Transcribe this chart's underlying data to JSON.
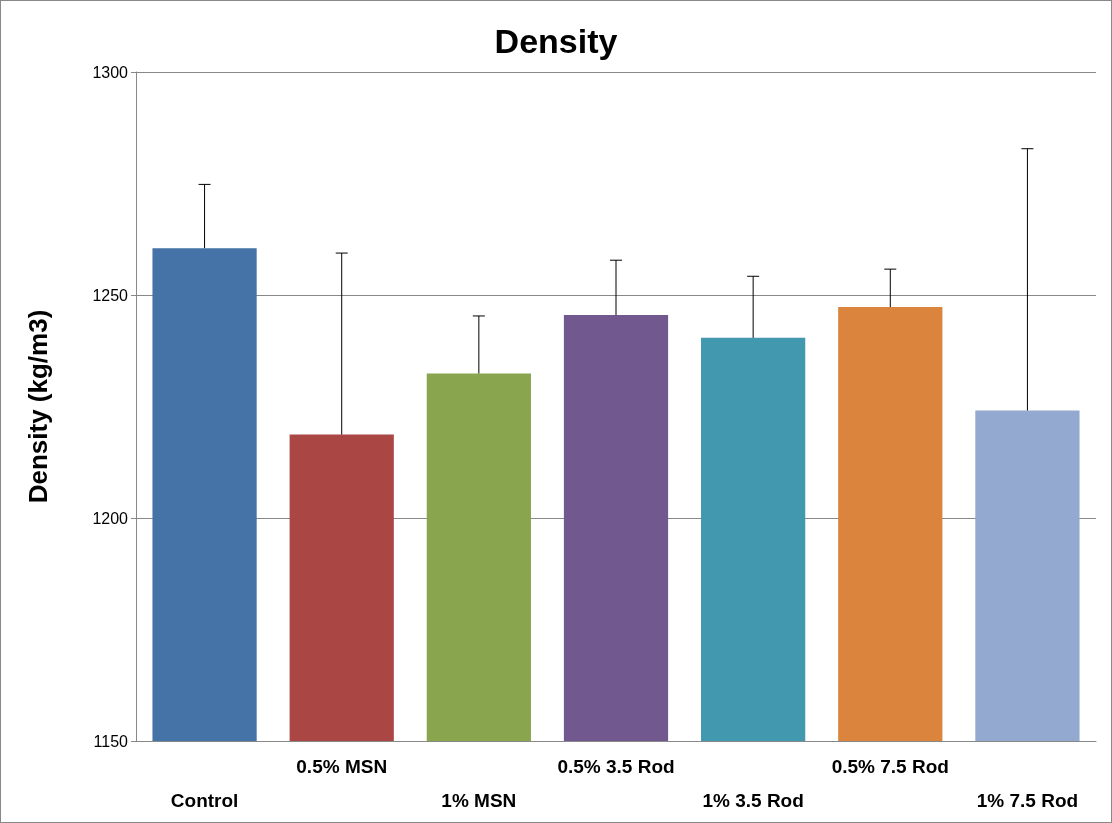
{
  "chart_data": {
    "type": "bar",
    "title": "Density",
    "ylabel": "Density (kg/m3)",
    "categories": [
      "Control",
      "0.5% MSN",
      "1% MSN",
      "0.5% 3.5 Rod",
      "1% 3.5 Rod",
      "0.5% 7.5 Rod",
      "1% 7.5 Rod"
    ],
    "values": [
      1260.5,
      1218.7,
      1232.4,
      1245.5,
      1240.4,
      1247.3,
      1224.1
    ],
    "errors": [
      [
        1260.5,
        1274.8
      ],
      [
        1218.7,
        1259.4
      ],
      [
        1232.4,
        1245.3
      ],
      [
        1245.5,
        1257.8
      ],
      [
        1240.4,
        1254.2
      ],
      [
        1247.3,
        1255.8
      ],
      [
        1224.1,
        1282.8
      ]
    ],
    "colors": [
      "#4572a7",
      "#aa4643",
      "#89a54e",
      "#71588f",
      "#4198af",
      "#db843d",
      "#93a9cf"
    ],
    "ylim": [
      1150,
      1300
    ],
    "yticks": [
      1150,
      1200,
      1250,
      1300
    ],
    "grid": "y"
  }
}
